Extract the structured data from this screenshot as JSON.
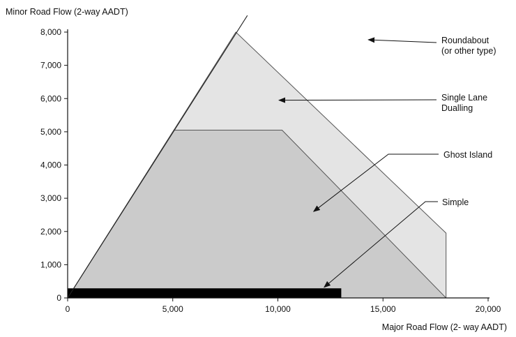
{
  "chart_data": {
    "type": "area",
    "title": "",
    "xlabel": "Major Road Flow (2- way AADT)",
    "ylabel": "Minor Road Flow (2-way AADT)",
    "xlim": [
      0,
      20000
    ],
    "ylim": [
      0,
      8000
    ],
    "x_ticks": [
      0,
      5000,
      10000,
      15000,
      20000
    ],
    "x_tick_labels": [
      "0",
      "5,000",
      "10,000",
      "15,000",
      "20,000"
    ],
    "y_ticks": [
      0,
      1000,
      2000,
      3000,
      4000,
      5000,
      6000,
      7000,
      8000
    ],
    "y_tick_labels": [
      "0",
      "1,000",
      "2,000",
      "3,000",
      "4,000",
      "5,000",
      "6,000",
      "7,000",
      "8,000"
    ],
    "boundary_line": {
      "from": [
        0,
        0
      ],
      "to": [
        8550,
        8500
      ]
    },
    "regions": [
      {
        "name": "Single Lane Dualling",
        "fill": "#e4e4e4",
        "points": [
          [
            0,
            0
          ],
          [
            8000,
            8000
          ],
          [
            18000,
            1950
          ],
          [
            18000,
            0
          ]
        ]
      },
      {
        "name": "Ghost Island",
        "fill": "#cbcbcb",
        "points": [
          [
            0,
            0
          ],
          [
            5050,
            5050
          ],
          [
            10200,
            5050
          ],
          [
            18000,
            0
          ]
        ]
      },
      {
        "name": "Simple",
        "fill": "#000000",
        "points": [
          [
            0,
            0
          ],
          [
            0,
            280
          ],
          [
            13000,
            280
          ],
          [
            13000,
            0
          ]
        ]
      }
    ],
    "annotations": [
      {
        "lines": [
          "Roundabout",
          "(or other type)"
        ],
        "arrow_to": [
          14300,
          7770
        ]
      },
      {
        "lines": [
          "Single Lane",
          "Dualling"
        ],
        "arrow_to": [
          10050,
          5950
        ]
      },
      {
        "lines": [
          "Ghost Island"
        ],
        "arrow_to": [
          11700,
          2600
        ]
      },
      {
        "lines": [
          "Simple"
        ],
        "arrow_to": [
          12200,
          320
        ]
      }
    ]
  }
}
